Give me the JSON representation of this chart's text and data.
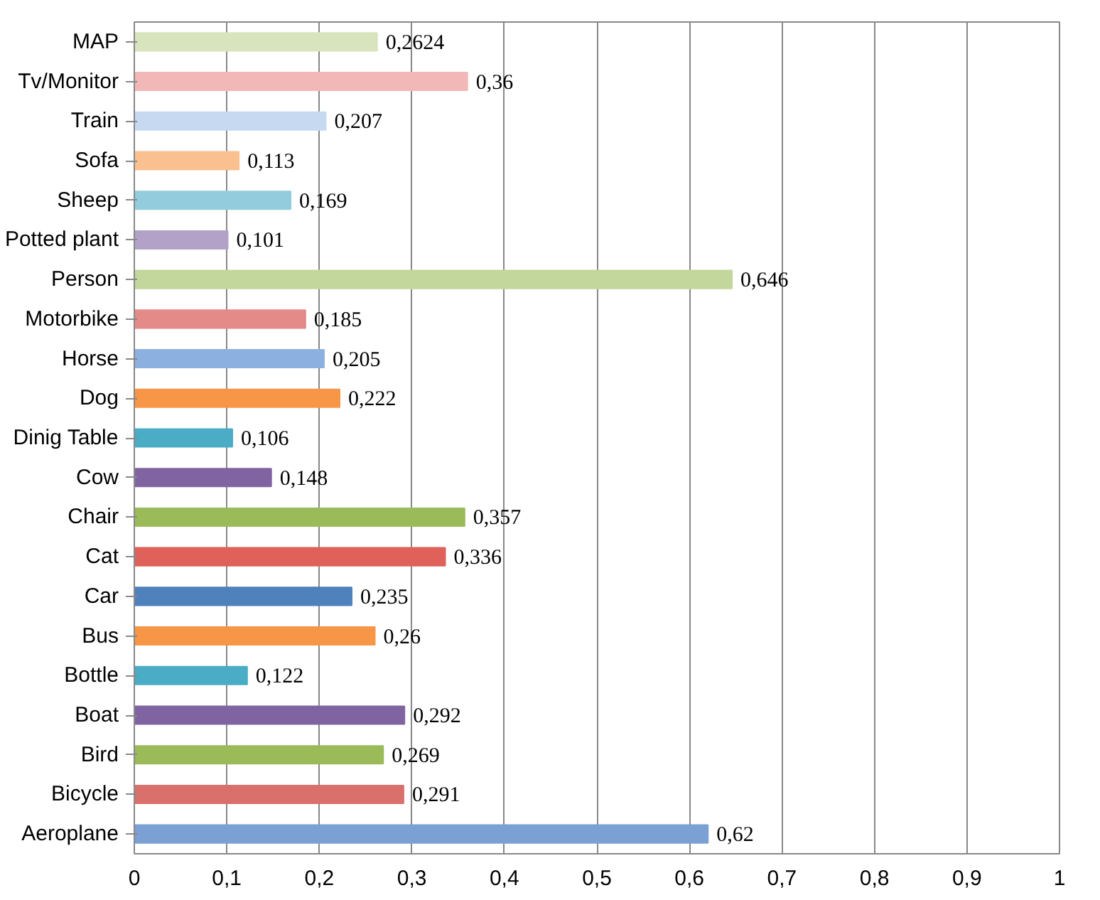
{
  "chart_data": {
    "type": "bar",
    "orientation": "horizontal",
    "categories": [
      "MAP",
      "Tv/Monitor",
      "Train",
      "Sofa",
      "Sheep",
      "Potted plant",
      "Person",
      "Motorbike",
      "Horse",
      "Dog",
      "Dinig Table",
      "Cow",
      "Chair",
      "Cat",
      "Car",
      "Bus",
      "Bottle",
      "Boat",
      "Bird",
      "Bicycle",
      "Aeroplane"
    ],
    "values": [
      0.2624,
      0.36,
      0.207,
      0.113,
      0.169,
      0.101,
      0.646,
      0.185,
      0.205,
      0.222,
      0.106,
      0.148,
      0.357,
      0.336,
      0.235,
      0.26,
      0.122,
      0.292,
      0.269,
      0.291,
      0.62
    ],
    "value_labels": [
      "0,2624",
      "0,36",
      "0,207",
      "0,113",
      "0,169",
      "0,101",
      "0,646",
      "0,185",
      "0,205",
      "0,222",
      "0,106",
      "0,148",
      "0,357",
      "0,336",
      "0,235",
      "0,26",
      "0,122",
      "0,292",
      "0,269",
      "0,291",
      "0,62"
    ],
    "colors": [
      "#d7e4bd",
      "#f2b8b8",
      "#c6d9f1",
      "#fac090",
      "#93cddd",
      "#b3a2c7",
      "#c3d69b",
      "#e48a88",
      "#8cb0e0",
      "#f79646",
      "#4bacc6",
      "#8064a2",
      "#9bbb59",
      "#e0605a",
      "#4f81bd",
      "#f79646",
      "#4bacc6",
      "#8064a2",
      "#9bbb59",
      "#d9706c",
      "#7ba0d4"
    ],
    "xlim": [
      0,
      1
    ],
    "xticks": [
      0,
      {
        "value": 0.1,
        "label": "0,1"
      },
      {
        "value": 0.2,
        "label": "0,2"
      },
      {
        "value": 0.3,
        "label": "0,3"
      },
      {
        "value": 0.4,
        "label": "0,4"
      },
      {
        "value": 0.5,
        "label": "0,5"
      },
      {
        "value": 0.6,
        "label": "0,6"
      },
      {
        "value": 0.7,
        "label": "0,7"
      },
      {
        "value": 0.8,
        "label": "0,8"
      },
      {
        "value": 0.9,
        "label": "0,9"
      },
      1
    ],
    "grid": "x"
  }
}
